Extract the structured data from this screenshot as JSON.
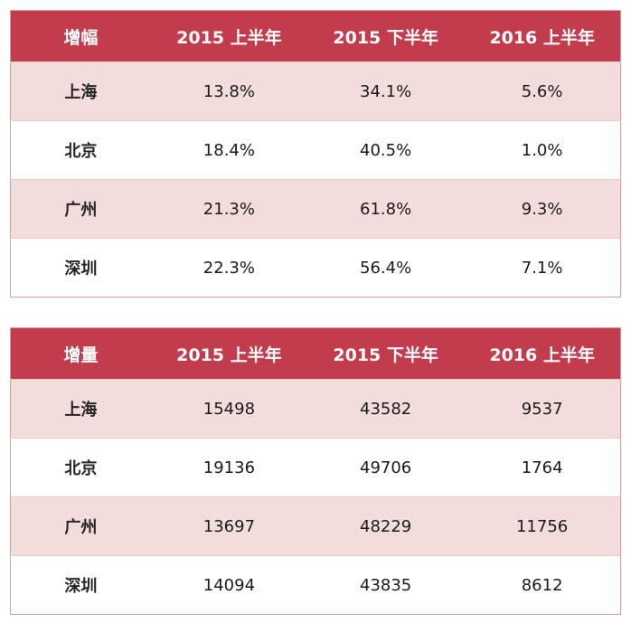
{
  "colors": {
    "header_bg": "#c23c4d",
    "header_text": "#ffffff",
    "row_stripe": "#f2dcdc",
    "row_line": "#eccaca",
    "border": "#d99b9b"
  },
  "chart_data": [
    {
      "type": "table",
      "title": "增幅",
      "columns": [
        "增幅",
        "2015 上半年",
        "2015 下半年",
        "2016 上半年"
      ],
      "rows": [
        [
          "上海",
          "13.8%",
          "34.1%",
          "5.6%"
        ],
        [
          "北京",
          "18.4%",
          "40.5%",
          "1.0%"
        ],
        [
          "广州",
          "21.3%",
          "61.8%",
          "9.3%"
        ],
        [
          "深圳",
          "22.3%",
          "56.4%",
          "7.1%"
        ]
      ]
    },
    {
      "type": "table",
      "title": "增量",
      "columns": [
        "增量",
        "2015 上半年",
        "2015 下半年",
        "2016 上半年"
      ],
      "rows": [
        [
          "上海",
          "15498",
          "43582",
          "9537"
        ],
        [
          "北京",
          "19136",
          "49706",
          "1764"
        ],
        [
          "广州",
          "13697",
          "48229",
          "11756"
        ],
        [
          "深圳",
          "14094",
          "43835",
          "8612"
        ]
      ]
    }
  ]
}
